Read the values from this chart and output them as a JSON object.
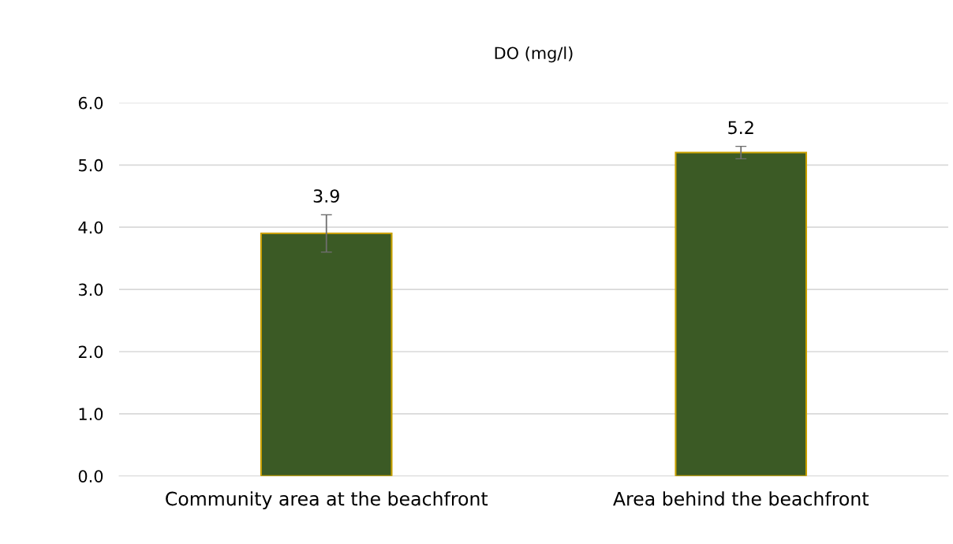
{
  "chart_data": {
    "type": "bar",
    "title": "DO (mg/l)",
    "categories": [
      "Community area at the beachfront",
      "Area behind the beachfront"
    ],
    "values": [
      3.9,
      5.2
    ],
    "errors": [
      0.3,
      0.1
    ],
    "color": "#3b5a25",
    "ylim": [
      0,
      6
    ],
    "yticks": [
      {
        "value": 0,
        "label": "0.0"
      },
      {
        "value": 1,
        "label": "1.0"
      },
      {
        "value": 2,
        "label": "2.0"
      },
      {
        "value": 3,
        "label": "3.0"
      },
      {
        "value": 4,
        "label": "4.0"
      },
      {
        "value": 5,
        "label": "5.0"
      },
      {
        "value": 6,
        "label": "6.0"
      }
    ],
    "grid": "y",
    "data_labels": true
  }
}
